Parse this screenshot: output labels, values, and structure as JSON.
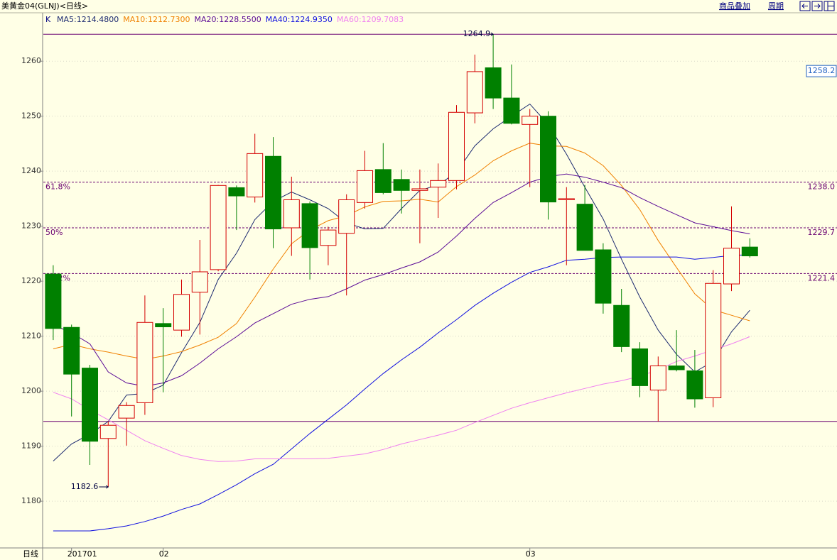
{
  "header": {
    "menu": [
      "商品叠加",
      "周期"
    ]
  },
  "chart_data": {
    "type": "candlestick",
    "title": "美黄金04(GLNJ)<日线>",
    "period_label": "日线",
    "price_label": "K",
    "current_price": 1258.2,
    "categories": [
      null,
      "201701",
      null,
      null,
      null,
      null,
      "02",
      null,
      null,
      null,
      null,
      null,
      null,
      null,
      null,
      null,
      null,
      null,
      null,
      null,
      null,
      null,
      null,
      null,
      null,
      null,
      "03",
      null,
      null,
      null,
      null,
      null,
      null,
      null,
      null,
      null,
      null,
      null,
      null
    ],
    "open": [
      1221.3,
      1211.6,
      1204.2,
      1191.4,
      1195.1,
      1197.9,
      1212.3,
      1211.1,
      1218.0,
      1222.1,
      1237.0,
      1235.3,
      1242.7,
      1229.7,
      1234.1,
      1226.5,
      1228.7,
      1234.3,
      1240.3,
      1238.5,
      1236.5,
      1237.1,
      1238.3,
      1250.6,
      1258.8,
      1253.3,
      1248.5,
      1250.0,
      1234.8,
      1234.0,
      1225.7,
      1215.6,
      1207.7,
      1200.2,
      1204.6,
      1203.7,
      1198.8,
      1219.5,
      1226.2
    ],
    "high": [
      1222.9,
      1212.1,
      1204.8,
      1194.5,
      1198.0,
      1217.4,
      1215.1,
      1220.3,
      1227.5,
      1237.5,
      1237.4,
      1246.8,
      1246.2,
      1239.0,
      1234.5,
      1229.9,
      1235.8,
      1243.7,
      1245.1,
      1240.3,
      1240.3,
      1241.4,
      1252.0,
      1261.2,
      1264.9,
      1259.4,
      1251.3,
      1250.9,
      1237.1,
      1237.5,
      1226.9,
      1218.6,
      1208.9,
      1206.3,
      1211.1,
      1207.5,
      1222.0,
      1233.6,
      1227.8
    ],
    "low": [
      1209.3,
      1195.4,
      1186.6,
      1182.6,
      1190.1,
      1195.7,
      1199.8,
      1209.9,
      1210.3,
      1221.8,
      1229.3,
      1234.3,
      1226.0,
      1224.6,
      1220.3,
      1222.9,
      1217.4,
      1233.2,
      1235.8,
      1232.3,
      1226.9,
      1231.5,
      1236.7,
      1248.7,
      1251.3,
      1248.5,
      1237.1,
      1231.2,
      1222.9,
      1225.6,
      1214.1,
      1207.1,
      1198.9,
      1194.5,
      1203.6,
      1197.0,
      1197.1,
      1218.2,
      1224.3
    ],
    "close": [
      1211.4,
      1203.1,
      1190.9,
      1193.8,
      1197.4,
      1212.5,
      1211.7,
      1217.6,
      1221.7,
      1237.4,
      1235.5,
      1243.2,
      1229.5,
      1234.8,
      1226.1,
      1229.3,
      1234.8,
      1240.1,
      1236.1,
      1236.5,
      1236.8,
      1238.3,
      1250.7,
      1258.1,
      1253.3,
      1248.7,
      1250.0,
      1234.4,
      1235.0,
      1225.6,
      1216.0,
      1208.1,
      1201.0,
      1204.6,
      1203.9,
      1198.6,
      1219.6,
      1226.0,
      1224.6
    ],
    "up_color": "#d40000",
    "down_color": "#008000",
    "series": [
      {
        "name": "MA5",
        "color": "#1c2a70",
        "legend_value": {
          "value": 1214.48,
          "label": "1214.4800"
        },
        "values": [
          1187.3,
          1190.4,
          1192.2,
          1194.5,
          1199.3,
          1199.6,
          1201.1,
          1207.0,
          1212.5,
          1220.3,
          1225.1,
          1231.2,
          1234.5,
          1236.2,
          1234.8,
          1233.2,
          1230.6,
          1229.5,
          1229.6,
          1233.2,
          1236.5,
          1237.5,
          1239.8,
          1244.6,
          1247.7,
          1250.0,
          1252.2,
          1248.5,
          1243.1,
          1237.1,
          1231.3,
          1224.0,
          1217.1,
          1211.1,
          1206.7,
          1203.5,
          1205.4,
          1210.8,
          1214.7
        ]
      },
      {
        "name": "MA10",
        "color": "#f08000",
        "legend_value": {
          "value": 1212.73,
          "label": "1212.7300"
        },
        "values": [
          1207.7,
          1208.5,
          1207.7,
          1207.1,
          1206.4,
          1205.8,
          1206.4,
          1207.2,
          1208.4,
          1209.8,
          1212.3,
          1217.1,
          1222.2,
          1226.8,
          1229.3,
          1231.0,
          1231.9,
          1233.5,
          1234.5,
          1234.6,
          1234.9,
          1234.4,
          1237.2,
          1239.3,
          1241.9,
          1243.7,
          1245.1,
          1244.6,
          1244.5,
          1243.3,
          1241.0,
          1237.4,
          1233.0,
          1227.4,
          1222.5,
          1217.7,
          1214.8,
          1213.8,
          1212.8
        ]
      },
      {
        "name": "MA20",
        "color": "#5a0a96",
        "legend_value": {
          "value": 1228.55,
          "label": "1228.5500"
        },
        "values": [
          1212.1,
          1210.6,
          1208.6,
          1203.5,
          1201.5,
          1200.9,
          1201.5,
          1202.8,
          1205.1,
          1207.7,
          1209.9,
          1212.4,
          1214.1,
          1215.8,
          1216.7,
          1217.2,
          1218.6,
          1220.2,
          1221.2,
          1222.4,
          1223.5,
          1225.3,
          1228.2,
          1231.4,
          1234.3,
          1236.1,
          1238.0,
          1239.0,
          1239.5,
          1238.9,
          1238.0,
          1237.0,
          1235.2,
          1233.6,
          1232.1,
          1230.6,
          1229.9,
          1229.2,
          1228.6
        ]
      },
      {
        "name": "MA40",
        "color": "#1010e0",
        "legend_value": {
          "value": 1224.935,
          "label": "1224.9350"
        },
        "values": [
          1174.6,
          1174.6,
          1174.6,
          1175.0,
          1175.5,
          1176.3,
          1177.3,
          1178.5,
          1179.5,
          1181.2,
          1183.0,
          1185.0,
          1186.7,
          1189.5,
          1192.3,
          1194.9,
          1197.5,
          1200.4,
          1203.2,
          1205.7,
          1208.0,
          1210.6,
          1213.0,
          1215.6,
          1217.8,
          1219.8,
          1221.6,
          1222.6,
          1223.8,
          1224.0,
          1224.3,
          1224.4,
          1224.4,
          1224.4,
          1224.4,
          1224.0,
          1224.3,
          1224.7,
          1224.8
        ]
      },
      {
        "name": "MA60",
        "color": "#f080f0",
        "legend_value": {
          "value": 1209.7083,
          "label": "1209.7083"
        },
        "values": [
          1199.8,
          1198.6,
          1196.6,
          1194.8,
          1192.9,
          1191.0,
          1189.6,
          1188.3,
          1187.6,
          1187.2,
          1187.3,
          1187.7,
          1187.7,
          1187.7,
          1187.7,
          1187.8,
          1188.2,
          1188.6,
          1189.4,
          1190.4,
          1191.2,
          1192.0,
          1192.9,
          1194.3,
          1195.6,
          1196.9,
          1197.9,
          1198.8,
          1199.7,
          1200.5,
          1201.3,
          1201.9,
          1202.7,
          1203.9,
          1205.4,
          1206.4,
          1207.5,
          1208.6,
          1209.9
        ]
      }
    ],
    "high_annotation": 1264.9,
    "low_annotation": 1182.6,
    "range_low": 1194.5,
    "levels": [
      {
        "name": "61.8%",
        "value": 1238.0,
        "value_label": "1238.0"
      },
      {
        "name": "50%",
        "value": 1229.7,
        "value_label": "1229.7"
      },
      {
        "name": "38.2%",
        "value": 1221.4,
        "value_label": "1221.4"
      }
    ],
    "level_color": "#6a0070",
    "ylim": [
      1171.5,
      1268.8
    ],
    "yticks": [
      1180,
      1190,
      1200,
      1210,
      1220,
      1230,
      1240,
      1250,
      1260
    ],
    "grid": true
  }
}
